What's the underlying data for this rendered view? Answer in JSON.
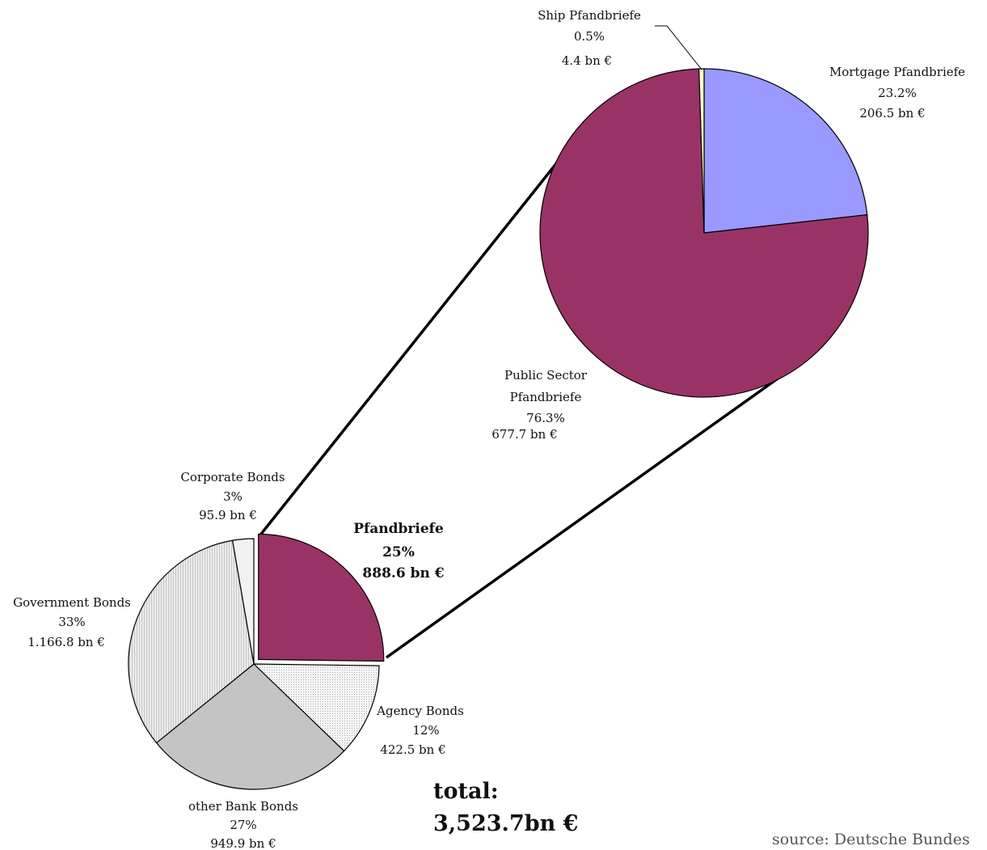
{
  "chart_data": [
    {
      "type": "pie",
      "unit": "bn €",
      "slices": [
        {
          "name": "Pfandbriefe",
          "percent_label": "25%",
          "value": 888.6,
          "value_label": "888.6 bn €",
          "fill": "pattern-none",
          "color": "#993366",
          "exploded": true,
          "bold": true
        },
        {
          "name": "Agency Bonds",
          "percent_label": "12%",
          "value": 422.5,
          "value_label": "422.5 bn €",
          "color": "#f4f4f4",
          "texture": "fine-dots"
        },
        {
          "name": "other Bank Bonds",
          "percent_label": "27%",
          "value": 949.9,
          "value_label": "949.9 bn €",
          "color": "#c4c4c4",
          "texture": "none"
        },
        {
          "name": "Government Bonds",
          "percent_label": "33%",
          "value": 1166.8,
          "value_label": "1.166.8 bn €",
          "color": "#e6e6e6",
          "texture": "vertical-lines"
        },
        {
          "name": "Corporate Bonds",
          "percent_label": "3%",
          "value": 95.9,
          "value_label": "95.9 bn €",
          "color": "#f2f2f2",
          "texture": "none"
        }
      ]
    },
    {
      "type": "pie",
      "unit": "bn €",
      "breakdown_of": "Pfandbriefe",
      "slices": [
        {
          "name": "Mortgage Pfandbriefe",
          "percent_label": "23.2%",
          "value": 206.5,
          "value_label": "206.5 bn €",
          "color": "#9999ff"
        },
        {
          "name": "Public Sector Pfandbriefe",
          "name_lines": [
            "Public Sector",
            "Pfandbriefe"
          ],
          "percent_label": "76.3%",
          "value": 677.7,
          "value_label": "677.7 bn €",
          "color": "#993366"
        },
        {
          "name": "Ship Pfandbriefe",
          "percent_label": "0.5%",
          "value": 4.4,
          "value_label": "4.4 bn €",
          "color": "#ffffcc"
        }
      ]
    }
  ],
  "total": {
    "label": "total:",
    "value": "3,523.7bn €"
  },
  "source": "source: Deutsche Bundes"
}
